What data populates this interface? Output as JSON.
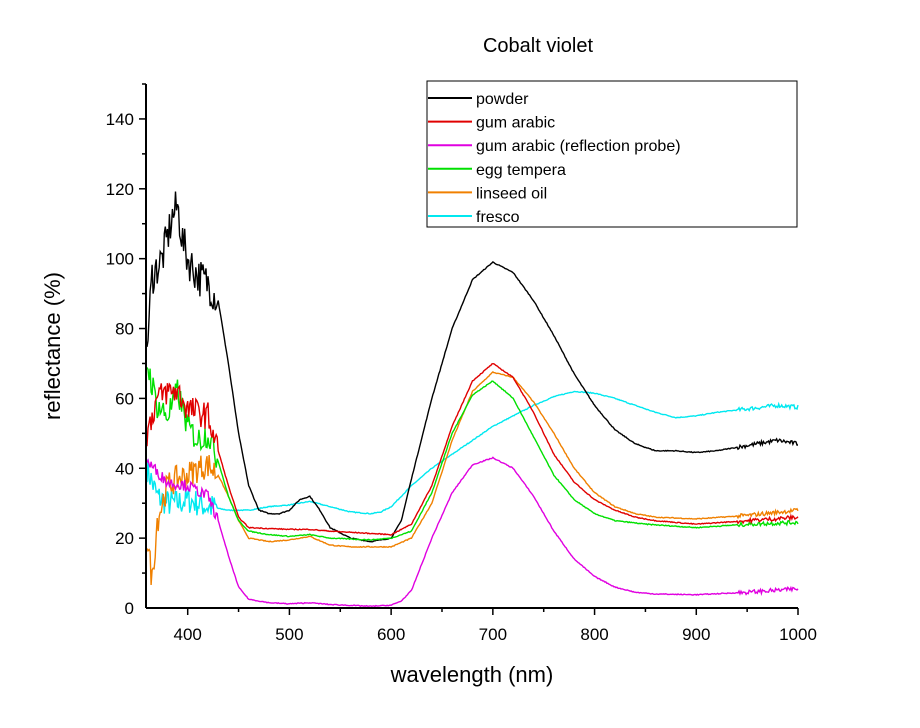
{
  "chart_data": {
    "type": "line",
    "title": "Cobalt violet",
    "xlabel": "wavelength (nm)",
    "ylabel": "reflectance (%)",
    "xlim": [
      359,
      1000
    ],
    "ylim": [
      0,
      150
    ],
    "xticks": [
      400,
      500,
      600,
      700,
      800,
      900,
      1000
    ],
    "yticks": [
      0,
      20,
      40,
      60,
      80,
      100,
      120,
      140
    ],
    "grid": false,
    "legend_position": "top-right",
    "series": [
      {
        "name": "powder",
        "color": "#000000",
        "x": [
          360,
          365,
          375,
          385,
          390,
          395,
          400,
          410,
          420,
          430,
          440,
          450,
          460,
          470,
          480,
          490,
          500,
          510,
          520,
          530,
          540,
          560,
          580,
          600,
          610,
          620,
          640,
          660,
          680,
          700,
          720,
          740,
          760,
          780,
          800,
          820,
          840,
          860,
          880,
          900,
          920,
          940,
          960,
          980,
          1000
        ],
        "y": [
          75,
          95,
          100,
          112,
          115,
          105,
          100,
          95,
          93,
          88,
          70,
          50,
          35,
          28,
          27,
          27,
          28,
          31,
          32,
          28,
          23,
          20,
          19,
          20,
          25,
          37,
          60,
          80,
          94,
          99,
          96,
          88,
          78,
          67,
          58,
          51,
          47,
          45,
          45,
          44.5,
          45,
          46,
          47,
          48,
          47
        ]
      },
      {
        "name": "gum arabic",
        "color": "#e00000",
        "x": [
          360,
          370,
          380,
          390,
          400,
          410,
          420,
          430,
          440,
          450,
          460,
          500,
          520,
          540,
          600,
          620,
          640,
          660,
          680,
          700,
          720,
          740,
          760,
          780,
          800,
          820,
          840,
          860,
          900,
          950,
          1000
        ],
        "y": [
          50,
          60,
          62,
          62,
          57,
          56,
          55,
          45,
          35,
          26,
          23,
          22.5,
          22.5,
          22,
          21,
          24,
          35,
          52,
          65,
          70,
          66,
          56,
          44,
          36,
          31,
          28,
          26,
          25,
          24,
          25,
          26
        ]
      },
      {
        "name": "gum arabic (reflection probe)",
        "color": "#e000e0",
        "x": [
          360,
          380,
          400,
          420,
          430,
          440,
          450,
          460,
          480,
          500,
          520,
          540,
          580,
          600,
          610,
          620,
          640,
          660,
          680,
          700,
          720,
          740,
          760,
          780,
          800,
          820,
          840,
          860,
          900,
          950,
          1000
        ],
        "y": [
          42,
          36,
          35,
          32,
          25,
          15,
          6,
          2.5,
          1.5,
          1.2,
          1.5,
          1,
          0.5,
          0.8,
          2,
          5,
          20,
          33,
          41,
          43,
          40,
          32,
          22,
          14,
          9,
          6,
          4.5,
          4,
          3.8,
          4.5,
          5.5
        ]
      },
      {
        "name": "egg tempera",
        "color": "#00e000",
        "x": [
          360,
          370,
          380,
          390,
          400,
          410,
          420,
          430,
          440,
          450,
          460,
          480,
          500,
          520,
          540,
          580,
          600,
          620,
          640,
          660,
          680,
          700,
          720,
          740,
          760,
          780,
          800,
          820,
          850,
          900,
          950,
          1000
        ],
        "y": [
          70,
          58,
          55,
          62,
          52,
          48,
          50,
          42,
          32,
          25,
          22,
          21,
          20.5,
          21,
          20,
          19.5,
          20,
          22,
          33,
          50,
          61,
          65,
          60,
          49,
          38,
          31,
          27,
          25,
          24,
          23,
          24,
          24.5
        ]
      },
      {
        "name": "linseed oil",
        "color": "#f08000",
        "x": [
          360,
          365,
          370,
          380,
          390,
          400,
          410,
          420,
          430,
          440,
          450,
          460,
          480,
          500,
          520,
          540,
          560,
          600,
          620,
          640,
          660,
          680,
          700,
          720,
          740,
          760,
          780,
          800,
          820,
          840,
          860,
          900,
          950,
          1000
        ],
        "y": [
          20,
          8,
          25,
          35,
          37,
          38,
          40,
          41,
          38,
          32,
          25,
          20,
          19,
          19.5,
          20.5,
          18,
          17.5,
          17.5,
          20,
          30,
          48,
          62,
          67.5,
          66,
          59,
          50,
          40,
          33,
          29,
          27,
          26,
          25.5,
          26.5,
          28
        ]
      },
      {
        "name": "fresco",
        "color": "#00e8f0",
        "x": [
          360,
          370,
          380,
          390,
          400,
          420,
          440,
          460,
          480,
          500,
          520,
          540,
          560,
          580,
          590,
          600,
          620,
          640,
          660,
          680,
          700,
          720,
          740,
          760,
          780,
          800,
          820,
          840,
          860,
          880,
          900,
          920,
          950,
          980,
          1000
        ],
        "y": [
          40,
          32,
          30,
          30,
          31,
          29,
          28,
          28,
          29,
          29.5,
          30.5,
          29,
          27.5,
          27,
          27.5,
          29,
          35,
          40,
          44,
          48,
          52,
          55,
          58,
          60.5,
          62,
          61.5,
          60,
          58,
          56,
          54.5,
          55,
          56,
          57,
          58,
          57.5
        ]
      }
    ]
  }
}
